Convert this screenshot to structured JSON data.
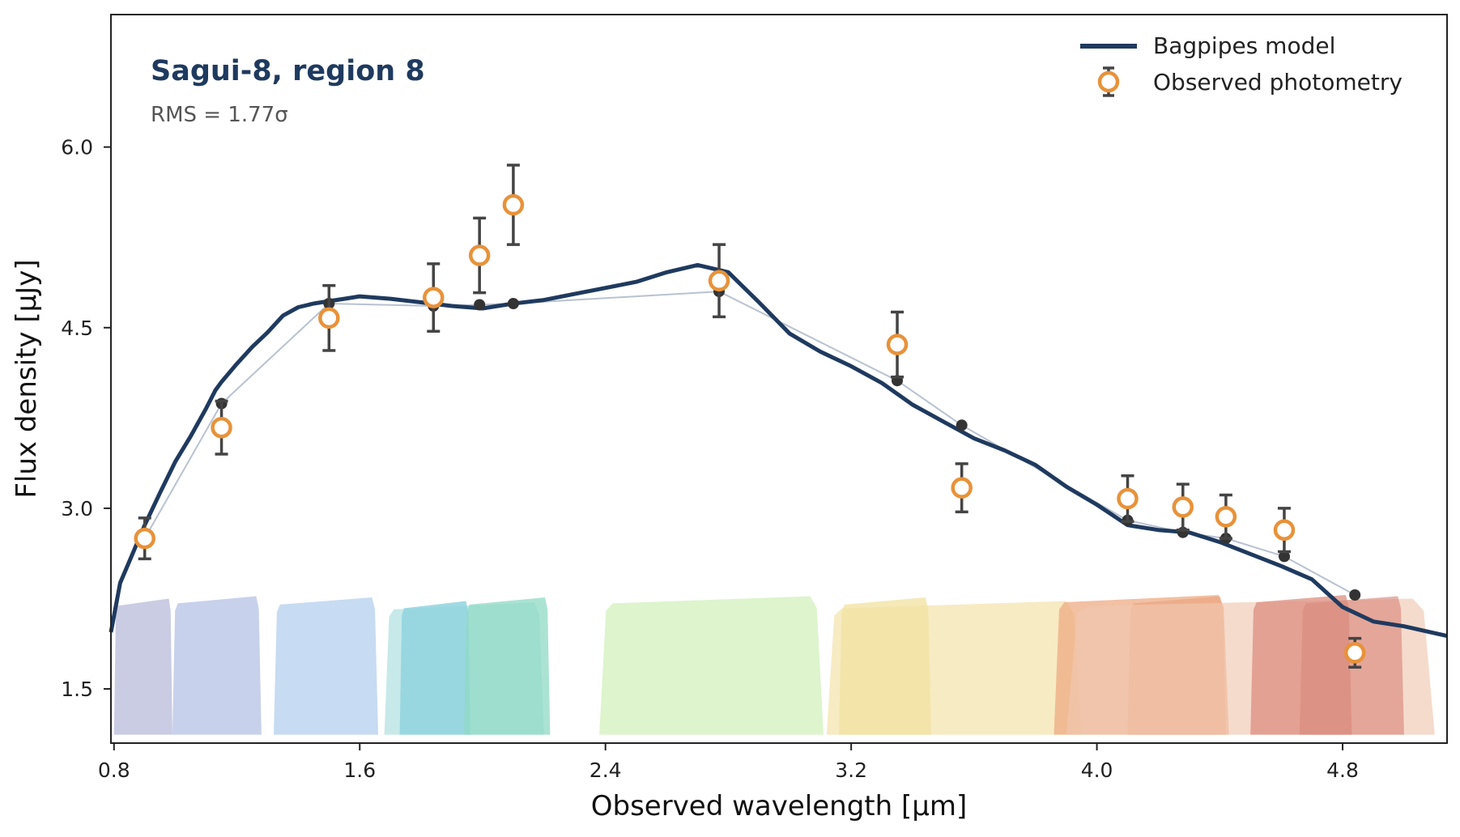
{
  "chart_data": {
    "type": "line",
    "title": "Sagui-8, region 8",
    "subtitle": "RMS = 1.77σ",
    "xlabel": "Observed wavelength [µm]",
    "ylabel": "Flux density [µJy]",
    "xlim": [
      0.79,
      5.14
    ],
    "ylim": [
      1.05,
      7.1
    ],
    "xticks": [
      0.8,
      1.6,
      2.4,
      3.2,
      4.0,
      4.8
    ],
    "xtick_labels": [
      "0.8",
      "1.6",
      "2.4",
      "3.2",
      "4.0",
      "4.8"
    ],
    "yticks": [
      1.5,
      3.0,
      4.5,
      6.0
    ],
    "ytick_labels": [
      "1.5",
      "3.0",
      "4.5",
      "6.0"
    ],
    "grid": false,
    "legend_position": "top-right",
    "legend": [
      {
        "label": "Bagpipes model",
        "kind": "line"
      },
      {
        "label": "Observed photometry",
        "kind": "errorbar-marker"
      }
    ],
    "colors": {
      "model": "#1f3a5f",
      "photometry_marker": "#e8923a",
      "errorbar": "#444444",
      "model_photometry": "#333333",
      "title": "#1f3a5f"
    },
    "series": [
      {
        "name": "Bagpipes model",
        "x": [
          0.79,
          0.82,
          0.85,
          0.9,
          0.95,
          1.0,
          1.05,
          1.1,
          1.13,
          1.15,
          1.2,
          1.25,
          1.3,
          1.35,
          1.4,
          1.45,
          1.5,
          1.55,
          1.6,
          1.7,
          1.8,
          1.9,
          2.0,
          2.1,
          2.2,
          2.3,
          2.4,
          2.5,
          2.6,
          2.7,
          2.8,
          2.9,
          3.0,
          3.1,
          3.2,
          3.3,
          3.4,
          3.5,
          3.6,
          3.7,
          3.8,
          3.9,
          4.0,
          4.1,
          4.2,
          4.3,
          4.4,
          4.5,
          4.6,
          4.7,
          4.8,
          4.9,
          5.0,
          5.14
        ],
        "y": [
          1.97,
          2.38,
          2.56,
          2.86,
          3.13,
          3.39,
          3.6,
          3.83,
          3.98,
          4.05,
          4.2,
          4.34,
          4.46,
          4.6,
          4.67,
          4.7,
          4.72,
          4.74,
          4.76,
          4.74,
          4.71,
          4.68,
          4.66,
          4.7,
          4.73,
          4.78,
          4.83,
          4.88,
          4.96,
          5.02,
          4.96,
          4.71,
          4.45,
          4.3,
          4.18,
          4.04,
          3.86,
          3.72,
          3.58,
          3.48,
          3.36,
          3.18,
          3.03,
          2.86,
          2.82,
          2.8,
          2.72,
          2.62,
          2.52,
          2.41,
          2.18,
          2.06,
          2.02,
          1.94
        ]
      },
      {
        "name": "Observed photometry",
        "x": [
          0.9,
          1.15,
          1.5,
          1.84,
          1.99,
          2.1,
          2.77,
          3.35,
          3.56,
          4.1,
          4.28,
          4.42,
          4.61,
          4.84
        ],
        "y": [
          2.75,
          3.67,
          4.58,
          4.75,
          5.1,
          5.52,
          4.89,
          4.36,
          3.17,
          3.08,
          3.01,
          2.93,
          2.82,
          1.8
        ],
        "yerr": [
          0.17,
          0.22,
          0.27,
          0.28,
          0.31,
          0.33,
          0.3,
          0.27,
          0.2,
          0.19,
          0.19,
          0.18,
          0.18,
          0.12
        ]
      },
      {
        "name": "Model photometry",
        "x": [
          0.9,
          1.15,
          1.5,
          1.84,
          1.99,
          2.1,
          2.77,
          3.35,
          3.56,
          4.1,
          4.28,
          4.42,
          4.61,
          4.84
        ],
        "y": [
          2.75,
          3.87,
          4.7,
          4.68,
          4.69,
          4.7,
          4.8,
          4.06,
          3.69,
          2.9,
          2.8,
          2.75,
          2.6,
          2.28
        ]
      }
    ],
    "filters": [
      {
        "lo": 0.8,
        "hi": 0.99,
        "peak": 2.25,
        "color": "#c9cce2",
        "opacity": 1.0
      },
      {
        "lo": 0.99,
        "hi": 1.28,
        "peak": 2.27,
        "color": "#c4cfea",
        "opacity": 0.95
      },
      {
        "lo": 1.32,
        "hi": 1.66,
        "peak": 2.26,
        "color": "#c4d9f1",
        "opacity": 0.95
      },
      {
        "lo": 1.68,
        "hi": 2.2,
        "peak": 2.22,
        "color": "#b9e3e3",
        "opacity": 0.8
      },
      {
        "lo": 1.73,
        "hi": 1.96,
        "peak": 2.23,
        "color": "#8fd4de",
        "opacity": 0.85
      },
      {
        "lo": 1.94,
        "hi": 2.22,
        "peak": 2.26,
        "color": "#8fd9c4",
        "opacity": 0.75
      },
      {
        "lo": 2.38,
        "hi": 3.11,
        "peak": 2.27,
        "color": "#d7f2c4",
        "opacity": 0.85
      },
      {
        "lo": 3.12,
        "hi": 3.95,
        "peak": 2.23,
        "color": "#f6e7b9",
        "opacity": 0.85
      },
      {
        "lo": 3.16,
        "hi": 3.46,
        "peak": 2.26,
        "color": "#f2e2a0",
        "opacity": 0.75
      },
      {
        "lo": 3.86,
        "hi": 4.43,
        "peak": 2.28,
        "color": "#eeab83",
        "opacity": 0.75
      },
      {
        "lo": 4.1,
        "hi": 4.42,
        "peak": 2.27,
        "color": "#e9a07a",
        "opacity": 0.6
      },
      {
        "lo": 3.9,
        "hi": 5.1,
        "peak": 2.25,
        "color": "#f0c7b1",
        "opacity": 0.65
      },
      {
        "lo": 4.5,
        "hi": 4.83,
        "peak": 2.28,
        "color": "#dc8e80",
        "opacity": 0.75
      },
      {
        "lo": 4.66,
        "hi": 5.0,
        "peak": 2.27,
        "color": "#d88a7d",
        "opacity": 0.65
      }
    ]
  }
}
